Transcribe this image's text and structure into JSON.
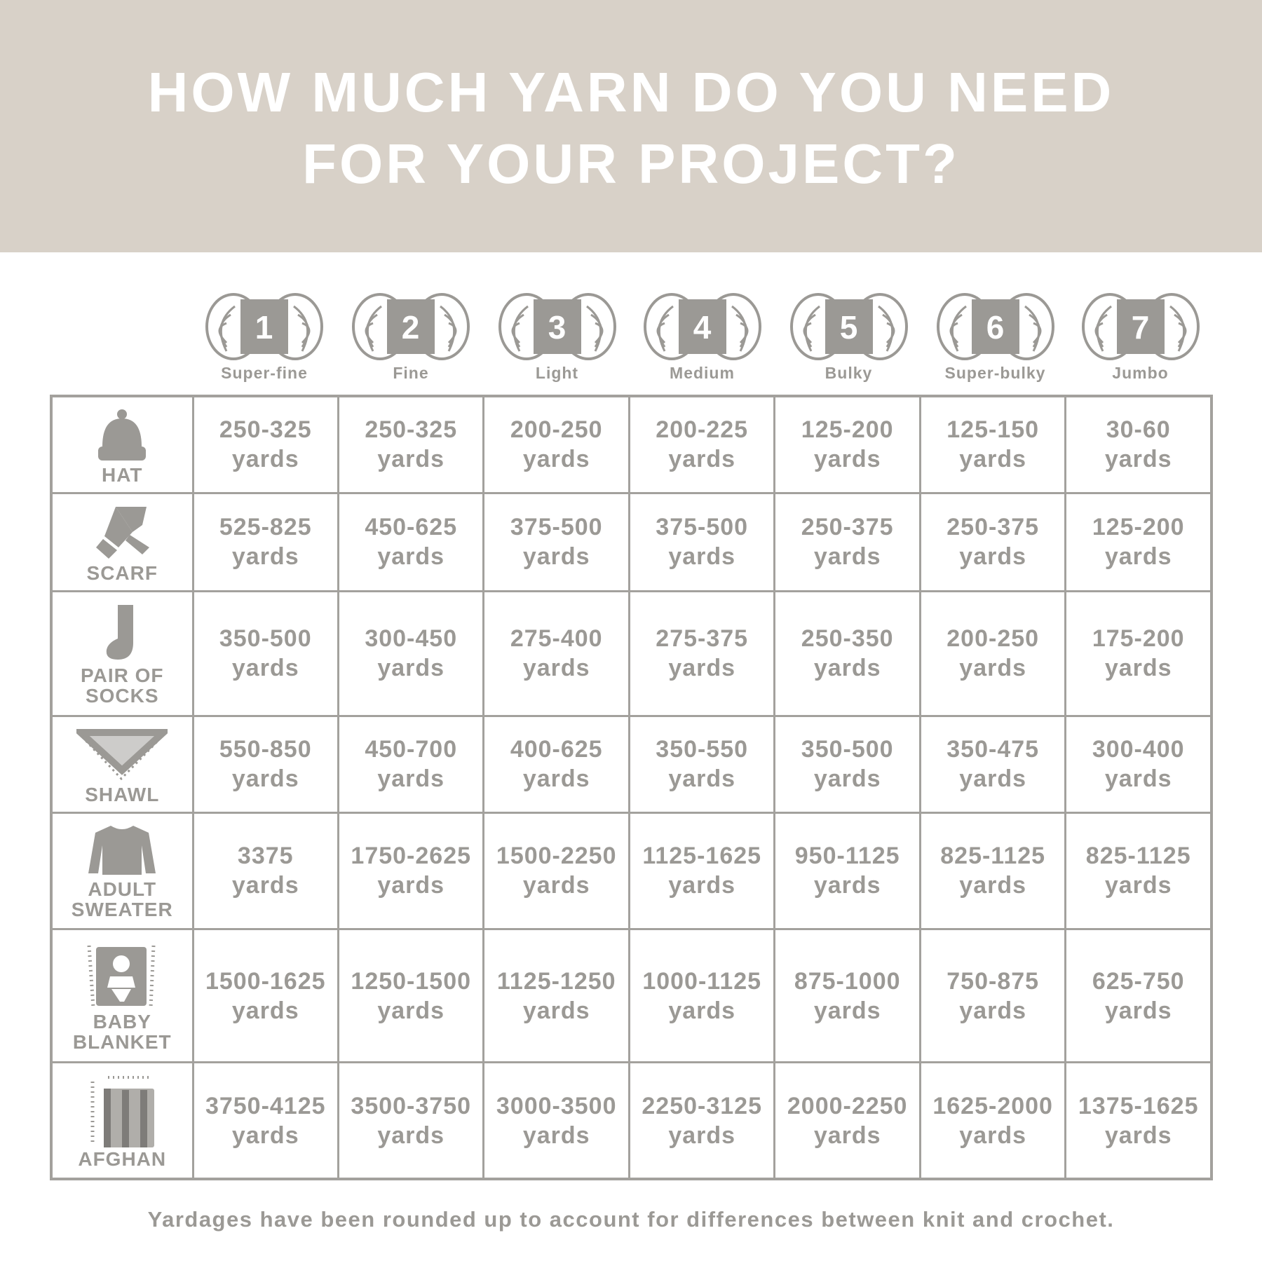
{
  "title": {
    "line1": "HOW MUCH YARN DO YOU NEED",
    "line2": "FOR YOUR PROJECT?"
  },
  "weights": [
    {
      "number": "1",
      "label": "Super-fine"
    },
    {
      "number": "2",
      "label": "Fine"
    },
    {
      "number": "3",
      "label": "Light"
    },
    {
      "number": "4",
      "label": "Medium"
    },
    {
      "number": "5",
      "label": "Bulky"
    },
    {
      "number": "6",
      "label": "Super-bulky"
    },
    {
      "number": "7",
      "label": "Jumbo"
    }
  ],
  "unit": "yards",
  "rows": [
    {
      "label": "HAT",
      "icon": "hat-icon",
      "values": [
        "250-325",
        "250-325",
        "200-250",
        "200-225",
        "125-200",
        "125-150",
        "30-60"
      ]
    },
    {
      "label": "SCARF",
      "icon": "scarf-icon",
      "values": [
        "525-825",
        "450-625",
        "375-500",
        "375-500",
        "250-375",
        "250-375",
        "125-200"
      ]
    },
    {
      "label": "PAIR OF SOCKS",
      "icon": "sock-icon",
      "values": [
        "350-500",
        "300-450",
        "275-400",
        "275-375",
        "250-350",
        "200-250",
        "175-200"
      ]
    },
    {
      "label": "SHAWL",
      "icon": "shawl-icon",
      "values": [
        "550-850",
        "450-700",
        "400-625",
        "350-550",
        "350-500",
        "350-475",
        "300-400"
      ]
    },
    {
      "label": "ADULT SWEATER",
      "icon": "sweater-icon",
      "values": [
        "3375",
        "1750-2625",
        "1500-2250",
        "1125-1625",
        "950-1125",
        "825-1125",
        "825-1125"
      ]
    },
    {
      "label": "BABY BLANKET",
      "icon": "baby-blanket-icon",
      "values": [
        "1500-1625",
        "1250-1500",
        "1125-1250",
        "1000-1125",
        "875-1000",
        "750-875",
        "625-750"
      ]
    },
    {
      "label": "AFGHAN",
      "icon": "afghan-icon",
      "values": [
        "3750-4125",
        "3500-3750",
        "3000-3500",
        "2250-3125",
        "2000-2250",
        "1625-2000",
        "1375-1625"
      ]
    }
  ],
  "footnote": "Yardages have been rounded up to account for differences between knit and crochet.",
  "colors": {
    "banner": "#d8d1c8",
    "text": "#9b9995",
    "grid": "#a3a19d"
  }
}
